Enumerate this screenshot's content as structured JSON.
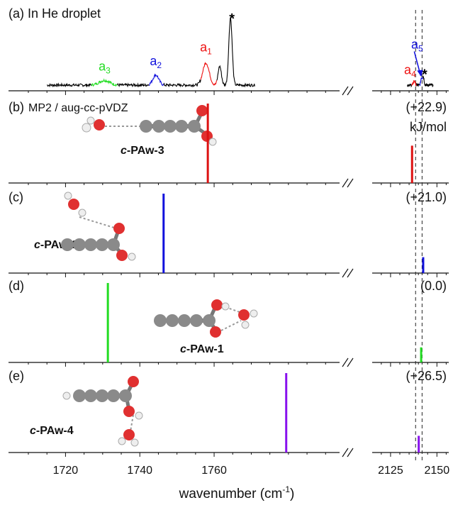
{
  "chart_data": {
    "type": "line",
    "xlabel": "wavenumber (cm",
    "xlabel_sup": "-1",
    "xlabel_close": ")",
    "x_segments": [
      {
        "xlim": [
          1710,
          1793
        ],
        "ticks": [
          "1720",
          "1740",
          "1760"
        ],
        "tick_values": [
          1720,
          1740,
          1760
        ]
      },
      {
        "xlim": [
          2117,
          2156
        ],
        "ticks": [
          "2125",
          "2150"
        ],
        "tick_values": [
          2125,
          2150
        ]
      }
    ],
    "dashed_lines": [
      2138.5,
      2142.0
    ],
    "panels": [
      {
        "id": "a",
        "label": "(a) In He droplet",
        "type": "spectrum",
        "baseline_noise": 0.02,
        "colored_regions": [
          {
            "name": "a",
            "sub": "1",
            "color": "#ee1111",
            "x": [
              1756.5,
              1760.8
            ],
            "peak": 1757.8,
            "height": 0.33
          },
          {
            "name": "a",
            "sub": "2",
            "color": "#1111dd",
            "x": [
              1742.5,
              1746.5
            ],
            "peak": 1744.3,
            "height": 0.15
          },
          {
            "name": "a",
            "sub": "3",
            "color": "#22dd22",
            "x": [
              1727,
              1734
            ],
            "peak": 1730.5,
            "height": 0.07
          },
          {
            "name": "a",
            "sub": "4",
            "color": "#ee1111",
            "x": [
              2136.5,
              2139.0
            ],
            "peak": 2137.8,
            "height": 0.06
          },
          {
            "name": "a",
            "sub": "5",
            "color": "#1111dd",
            "x": [
              2140.8,
              2142.5
            ],
            "peak": 2141.6,
            "height": 0.1
          }
        ],
        "black_peaks": [
          {
            "x": 1764.4,
            "height": 1.0,
            "star": "*"
          },
          {
            "x": 1761.5,
            "height": 0.28
          },
          {
            "x": 2142.6,
            "height": 0.13,
            "star": "*"
          }
        ]
      },
      {
        "id": "b",
        "label": "(b)",
        "method": "MP2 / aug-cc-pVDZ",
        "energy": "(+22.9)",
        "energy_unit": "kJ/mol",
        "molecule_prefix": "c",
        "molecule": "-PAw-3",
        "color": "#dd1111",
        "sticks": [
          {
            "x": 1758.3,
            "height": 1.0
          },
          {
            "x": 2136.6,
            "height": 0.47
          }
        ]
      },
      {
        "id": "c",
        "label": "(c)",
        "energy": "(+21.0)",
        "molecule_prefix": "c",
        "molecule": "-PAw-2",
        "color": "#1111dd",
        "sticks": [
          {
            "x": 1746.4,
            "height": 1.0
          },
          {
            "x": 2142.6,
            "height": 0.2
          }
        ]
      },
      {
        "id": "d",
        "label": "(d)",
        "energy": "(0.0)",
        "molecule_prefix": "c",
        "molecule": "-PAw-1",
        "color": "#22dd22",
        "sticks": [
          {
            "x": 1731.4,
            "height": 1.0
          },
          {
            "x": 2141.5,
            "height": 0.19
          }
        ]
      },
      {
        "id": "e",
        "label": "(e)",
        "energy": "(+26.5)",
        "molecule_prefix": "c",
        "molecule": "-PAw-4",
        "color": "#8811ee",
        "sticks": [
          {
            "x": 1779.4,
            "height": 1.0
          },
          {
            "x": 2140.2,
            "height": 0.21
          }
        ]
      }
    ]
  }
}
